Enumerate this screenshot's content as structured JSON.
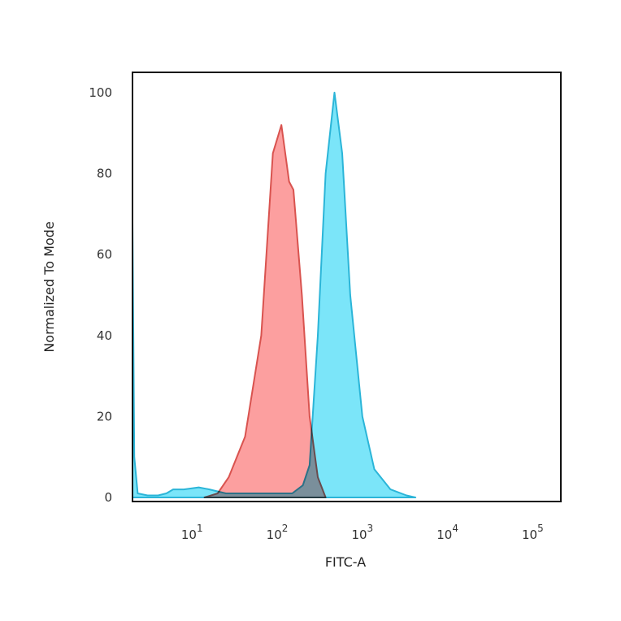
{
  "chart_data": {
    "type": "area",
    "title": "",
    "xlabel": "FITC-A",
    "ylabel": "Normalized To Mode",
    "xscale": "log",
    "xlim": [
      2.0,
      214000
    ],
    "ylim": [
      -1,
      105
    ],
    "xticks": [
      {
        "base": "10",
        "exp": "1",
        "value": 10
      },
      {
        "base": "10",
        "exp": "2",
        "value": 100
      },
      {
        "base": "10",
        "exp": "3",
        "value": 1000
      },
      {
        "base": "10",
        "exp": "4",
        "value": 10000
      },
      {
        "base": "10",
        "exp": "5",
        "value": 100000
      }
    ],
    "yticks": [
      0,
      20,
      40,
      60,
      80,
      100
    ],
    "grid": false,
    "series": [
      {
        "color": "#d9534f",
        "fill": "#fb8e8e",
        "x": [
          14,
          20,
          27,
          42,
          65,
          89,
          112,
          138,
          155,
          195,
          240,
          300,
          370
        ],
        "y": [
          0,
          1,
          5,
          15,
          40,
          85,
          92,
          78,
          76,
          50,
          20,
          5,
          0
        ]
      },
      {
        "color": "#2bb5d8",
        "fill": "#4fdcf7",
        "x": [
          2.0,
          2.1,
          2.3,
          3,
          4,
          5,
          6,
          8,
          12,
          16,
          25,
          60,
          150,
          200,
          240,
          300,
          370,
          470,
          580,
          720,
          1000,
          1380,
          2140,
          3300,
          4200
        ],
        "y": [
          68,
          10,
          1,
          0.5,
          0.5,
          1,
          2,
          2,
          2.5,
          2,
          1,
          1,
          1,
          3,
          8,
          40,
          80,
          100,
          85,
          50,
          20,
          7,
          2,
          0.5,
          0
        ]
      }
    ]
  }
}
